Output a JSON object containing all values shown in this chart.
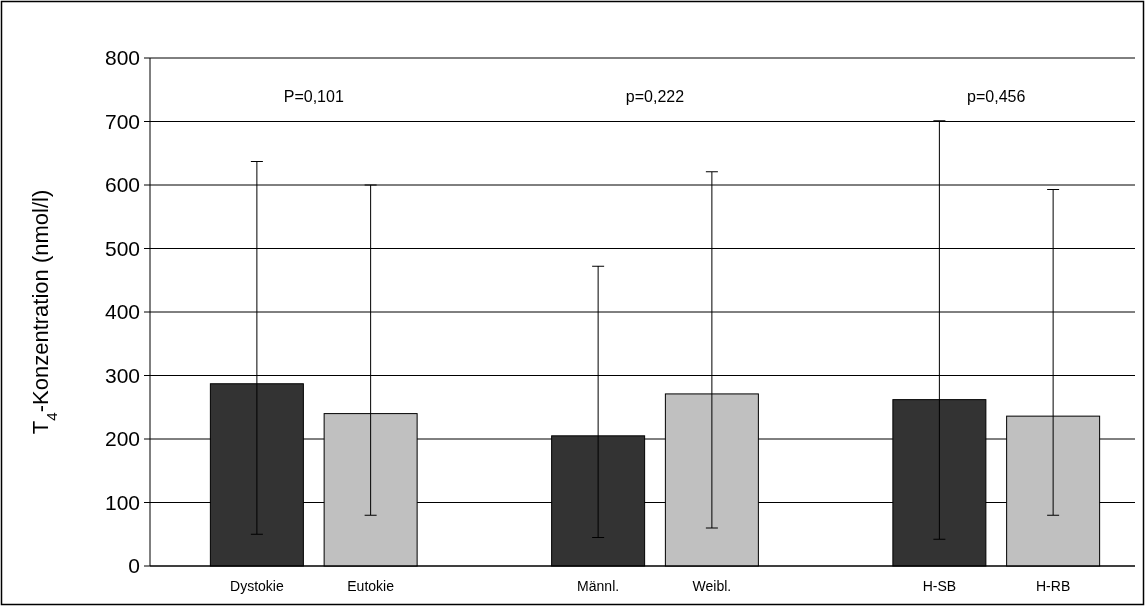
{
  "chart_data": {
    "type": "bar",
    "ylabel": "T$_{4}$-Konzentration (nmol/l)",
    "categories": [
      "Dystokie",
      "Eutokie",
      null,
      "Männl.",
      "Weibl.",
      null,
      "H-SB",
      "H-RB"
    ],
    "values": [
      287,
      240,
      null,
      205,
      271,
      null,
      262,
      236
    ],
    "colors": [
      "#333333",
      "#c0c0c0",
      null,
      "#333333",
      "#c0c0c0",
      null,
      "#333333",
      "#c0c0c0"
    ],
    "errors": [
      [
        50,
        637
      ],
      [
        80,
        600
      ],
      null,
      [
        45,
        472
      ],
      [
        60,
        621
      ],
      null,
      [
        42,
        701
      ],
      [
        80,
        593
      ]
    ],
    "ylim": [
      0,
      800
    ],
    "yticks": [
      0,
      100,
      200,
      300,
      400,
      500,
      600,
      700,
      800
    ],
    "grid": "y",
    "annotations": [
      "P=0,101",
      "p=0,222",
      "p=0,456"
    ]
  }
}
